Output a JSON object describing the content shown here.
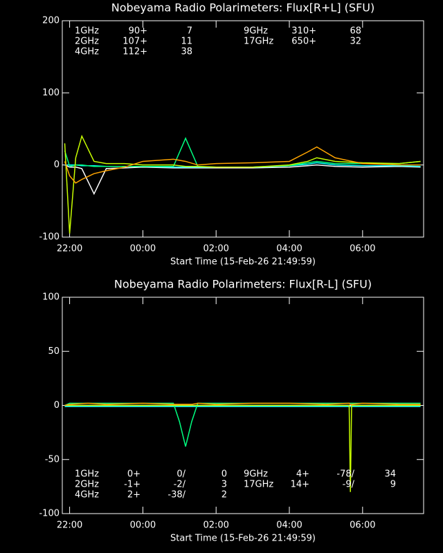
{
  "chart_data": [
    {
      "type": "line",
      "title": "Nobeyama Radio Polarimeters: Flux[R+L] (SFU)",
      "x_label": "Start Time (15-Feb-26 21:49:59)",
      "x": [
        "21:52",
        "22:00",
        "22:10",
        "22:20",
        "22:40",
        "23:00",
        "23:30",
        "00:00",
        "00:50",
        "01:10",
        "01:30",
        "02:00",
        "03:00",
        "04:00",
        "04:30",
        "04:45",
        "05:15",
        "06:00",
        "07:00",
        "07:35"
      ],
      "xlim": [
        "21:48",
        "07:40"
      ],
      "xticks": [
        "22:00",
        "00:00",
        "02:00",
        "04:00",
        "06:00"
      ],
      "ylim": [
        -100,
        200
      ],
      "yticks": [
        -100,
        0,
        100,
        200
      ],
      "series": [
        {
          "name": "1GHz",
          "color": "#ffffff",
          "legend_text": [
            "90+",
            "7"
          ],
          "values": [
            0,
            -3,
            -3,
            -5,
            -40,
            -5,
            -4,
            -3,
            -4,
            -4,
            -4,
            -4,
            -4,
            -3,
            -1,
            0,
            -2,
            -3,
            -2,
            -3
          ]
        },
        {
          "name": "2GHz",
          "color": "#00ffff",
          "legend_text": [
            "107+",
            "11"
          ],
          "values": [
            0,
            0,
            0,
            -1,
            -1,
            -2,
            -2,
            -2,
            -3,
            -3,
            -3,
            -3,
            -3,
            -1,
            1,
            3,
            0,
            -1,
            -1,
            -2
          ]
        },
        {
          "name": "4GHz",
          "color": "#00ff80",
          "legend_text": [
            "112+",
            "38"
          ],
          "values": [
            20,
            -2,
            0,
            0,
            -2,
            -2,
            -2,
            -2,
            -2,
            37,
            -2,
            -3,
            -3,
            -1,
            3,
            5,
            2,
            2,
            2,
            5
          ]
        },
        {
          "name": "9GHz",
          "color": "#c8ff00",
          "legend_text": [
            "310+",
            "68"
          ],
          "values": [
            30,
            -95,
            10,
            40,
            5,
            2,
            2,
            0,
            0,
            -2,
            -2,
            -3,
            -3,
            0,
            5,
            10,
            5,
            3,
            2,
            5
          ]
        },
        {
          "name": "17GHz",
          "color": "#ffa500",
          "legend_text": [
            "650+",
            "32"
          ],
          "values": [
            5,
            -15,
            -25,
            -20,
            -12,
            -8,
            -3,
            5,
            8,
            5,
            0,
            2,
            3,
            5,
            18,
            25,
            10,
            2,
            0,
            0
          ]
        }
      ]
    },
    {
      "type": "line",
      "title": "Nobeyama Radio Polarimeters: Flux[R-L] (SFU)",
      "x_label": "Start Time (15-Feb-26 21:49:59)",
      "x": [
        "21:52",
        "22:00",
        "22:30",
        "23:00",
        "00:00",
        "00:50",
        "01:00",
        "01:10",
        "01:20",
        "01:30",
        "02:00",
        "03:00",
        "04:00",
        "05:00",
        "05:38",
        "05:40",
        "05:42",
        "06:00",
        "07:00",
        "07:35"
      ],
      "xlim": [
        "21:48",
        "07:40"
      ],
      "xticks": [
        "22:00",
        "00:00",
        "02:00",
        "04:00",
        "06:00"
      ],
      "ylim": [
        -100,
        100
      ],
      "yticks": [
        -100,
        -50,
        0,
        50,
        100
      ],
      "series": [
        {
          "name": "1GHz",
          "color": "#ffffff",
          "legend_text": [
            "0+",
            "0/",
            "0"
          ],
          "values": [
            0,
            0,
            0,
            0,
            0,
            0,
            0,
            0,
            0,
            0,
            0,
            0,
            0,
            0,
            0,
            0,
            0,
            0,
            0,
            0
          ]
        },
        {
          "name": "2GHz",
          "color": "#00ffff",
          "legend_text": [
            "-1+",
            "-2/",
            "3"
          ],
          "values": [
            -1,
            -1,
            -1,
            -1,
            -1,
            -1,
            -1,
            -1,
            -1,
            -1,
            -1,
            -1,
            -1,
            -1,
            -1,
            -1,
            -1,
            -1,
            -1,
            -1
          ]
        },
        {
          "name": "4GHz",
          "color": "#00ff80",
          "legend_text": [
            "2+",
            "-38/",
            "2"
          ],
          "values": [
            0,
            2,
            2,
            2,
            2,
            2,
            -15,
            -38,
            -15,
            2,
            2,
            2,
            2,
            2,
            2,
            2,
            2,
            2,
            2,
            2
          ]
        },
        {
          "name": "9GHz",
          "color": "#c8ff00",
          "legend_text": [
            "4+",
            "-78/",
            "34"
          ],
          "values": [
            0,
            0,
            0,
            0,
            0,
            0,
            0,
            0,
            0,
            0,
            0,
            0,
            0,
            0,
            0,
            -80,
            0,
            0,
            0,
            0
          ]
        },
        {
          "name": "17GHz",
          "color": "#ffa500",
          "legend_text": [
            "14+",
            "-9/",
            "9"
          ],
          "values": [
            0,
            1,
            2,
            1,
            2,
            1,
            1,
            1,
            1,
            2,
            1,
            2,
            2,
            1,
            2,
            1,
            1,
            2,
            1,
            1
          ]
        }
      ]
    }
  ]
}
